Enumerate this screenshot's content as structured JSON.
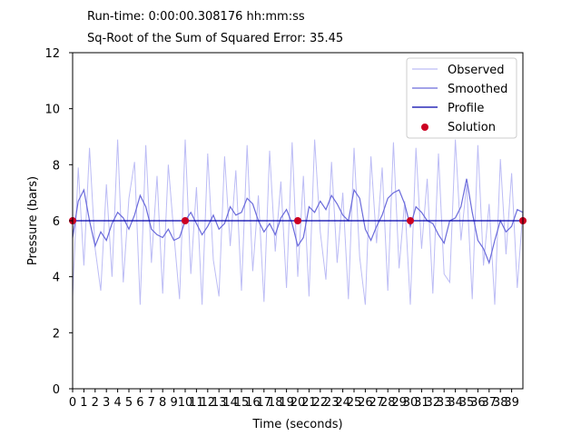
{
  "header": {
    "runtime": "Run-time: 0:00:00.308176 hh:mm:ss",
    "error": "Sq-Root of the Sum of Squared Error: 35.45"
  },
  "chart_data": {
    "type": "line",
    "xlabel": "Time (seconds)",
    "ylabel": "Pressure (bars)",
    "xlim": [
      0,
      40
    ],
    "ylim": [
      0,
      12
    ],
    "y_ticks": [
      0,
      2,
      4,
      6,
      8,
      10,
      12
    ],
    "x_ticks": [
      0,
      1,
      2,
      3,
      4,
      5,
      6,
      7,
      8,
      9,
      10,
      11,
      12,
      13,
      14,
      15,
      16,
      17,
      18,
      19,
      20,
      21,
      22,
      23,
      24,
      25,
      26,
      27,
      28,
      29,
      30,
      31,
      32,
      33,
      34,
      35,
      36,
      37,
      38,
      39
    ],
    "legend_position": "top-right",
    "grid": false,
    "series": [
      {
        "name": "Observed",
        "kind": "line",
        "color": "#bcbcf5",
        "x": [
          0,
          0.5,
          1,
          1.5,
          2,
          2.5,
          3,
          3.5,
          4,
          4.5,
          5,
          5.5,
          6,
          6.5,
          7,
          7.5,
          8,
          8.5,
          9,
          9.5,
          10,
          10.5,
          11,
          11.5,
          12,
          12.5,
          13,
          13.5,
          14,
          14.5,
          15,
          15.5,
          16,
          16.5,
          17,
          17.5,
          18,
          18.5,
          19,
          19.5,
          20,
          20.5,
          21,
          21.5,
          22,
          22.5,
          23,
          23.5,
          24,
          24.5,
          25,
          25.5,
          26,
          26.5,
          27,
          27.5,
          28,
          28.5,
          29,
          29.5,
          30,
          30.5,
          31,
          31.5,
          32,
          32.5,
          33,
          33.5,
          34,
          34.5,
          35,
          35.5,
          36,
          36.5,
          37,
          37.5,
          38,
          38.5,
          39,
          39.5,
          40
        ],
        "y": [
          3.3,
          7.9,
          4.4,
          8.6,
          5.0,
          3.5,
          7.3,
          4.0,
          8.9,
          3.8,
          6.8,
          8.1,
          3.0,
          8.7,
          4.5,
          7.6,
          3.4,
          8.0,
          5.5,
          3.2,
          8.9,
          4.1,
          7.2,
          3.0,
          8.4,
          4.6,
          3.3,
          8.3,
          5.1,
          7.8,
          3.5,
          8.7,
          4.2,
          6.9,
          3.1,
          8.5,
          4.9,
          7.4,
          3.6,
          8.8,
          4.0,
          7.6,
          3.3,
          8.9,
          5.6,
          3.9,
          8.1,
          4.5,
          7.0,
          3.2,
          8.6,
          4.7,
          3.0,
          8.3,
          5.2,
          7.9,
          3.5,
          8.8,
          4.3,
          6.7,
          3.0,
          8.6,
          5.0,
          7.5,
          3.4,
          8.4,
          4.1,
          3.8,
          8.9,
          5.3,
          7.3,
          3.2,
          8.7,
          4.4,
          6.6,
          3.0,
          8.2,
          4.8,
          7.7,
          3.6,
          6.4
        ]
      },
      {
        "name": "Smoothed",
        "kind": "line",
        "color": "#6b6bdb",
        "x": [
          0,
          0.5,
          1,
          1.5,
          2,
          2.5,
          3,
          3.5,
          4,
          4.5,
          5,
          5.5,
          6,
          6.5,
          7,
          7.5,
          8,
          8.5,
          9,
          9.5,
          10,
          10.5,
          11,
          11.5,
          12,
          12.5,
          13,
          13.5,
          14,
          14.5,
          15,
          15.5,
          16,
          16.5,
          17,
          17.5,
          18,
          18.5,
          19,
          19.5,
          20,
          20.5,
          21,
          21.5,
          22,
          22.5,
          23,
          23.5,
          24,
          24.5,
          25,
          25.5,
          26,
          26.5,
          27,
          27.5,
          28,
          28.5,
          29,
          29.5,
          30,
          30.5,
          31,
          31.5,
          32,
          32.5,
          33,
          33.5,
          34,
          34.5,
          35,
          35.5,
          36,
          36.5,
          37,
          37.5,
          38,
          38.5,
          39,
          39.5,
          40
        ],
        "y": [
          5.4,
          6.7,
          7.1,
          6.0,
          5.1,
          5.6,
          5.3,
          5.9,
          6.3,
          6.1,
          5.7,
          6.2,
          6.9,
          6.5,
          5.7,
          5.5,
          5.4,
          5.7,
          5.3,
          5.4,
          6.0,
          6.3,
          5.9,
          5.5,
          5.8,
          6.2,
          5.7,
          5.9,
          6.5,
          6.2,
          6.3,
          6.8,
          6.6,
          6.0,
          5.6,
          5.9,
          5.5,
          6.1,
          6.4,
          5.9,
          5.1,
          5.4,
          6.5,
          6.3,
          6.7,
          6.4,
          6.9,
          6.6,
          6.2,
          6.0,
          7.1,
          6.8,
          5.7,
          5.3,
          5.8,
          6.2,
          6.8,
          7.0,
          7.1,
          6.6,
          5.8,
          6.5,
          6.3,
          6.0,
          5.9,
          5.5,
          5.2,
          6.0,
          6.1,
          6.5,
          7.5,
          6.3,
          5.3,
          5.0,
          4.5,
          5.3,
          6.0,
          5.6,
          5.8,
          6.4,
          6.3
        ]
      },
      {
        "name": "Profile",
        "kind": "line",
        "color": "#0000aa",
        "x": [
          0,
          10,
          20,
          30,
          40
        ],
        "y": [
          6,
          6,
          6,
          6,
          6
        ]
      },
      {
        "name": "Solution",
        "kind": "scatter",
        "color": "#cc0022",
        "x": [
          0,
          10,
          20,
          30,
          40
        ],
        "y": [
          6,
          6,
          6,
          6,
          6
        ]
      }
    ]
  }
}
